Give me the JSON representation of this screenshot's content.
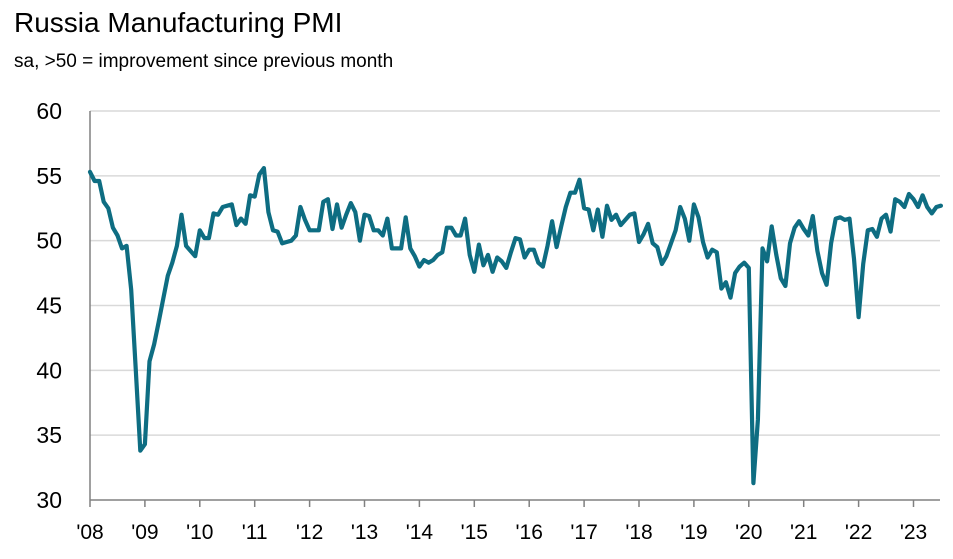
{
  "chart_data": {
    "type": "line",
    "title": "Russia Manufacturing PMI",
    "subtitle": "sa, >50 = improvement since previous month",
    "xlabel": "",
    "ylabel": "",
    "ylim": [
      30,
      60
    ],
    "yticks": [
      "60",
      "55",
      "50",
      "45",
      "40",
      "35",
      "30"
    ],
    "xticks": [
      "'08",
      "'09",
      "'10",
      "'11",
      "'12",
      "'13",
      "'14",
      "'15",
      "'16",
      "'17",
      "'18",
      "'19",
      "'20",
      "'21",
      "'22",
      "'23"
    ],
    "grid": "horizontal",
    "colors": {
      "line": "#0e6d82",
      "grid": "#d9d9d9",
      "axis": "#808080"
    },
    "series": [
      {
        "start": "2008-01",
        "frequency": "monthly",
        "values": [
          55.3,
          54.6,
          54.6,
          53.0,
          52.5,
          51.0,
          50.4,
          49.4,
          49.6,
          46.2,
          40.0,
          33.8,
          34.3,
          40.7,
          42.0,
          43.7,
          45.5,
          47.3,
          48.3,
          49.6,
          52.0,
          49.6,
          49.2,
          48.8,
          50.8,
          50.2,
          50.2,
          52.1,
          52.0,
          52.6,
          52.7,
          52.8,
          51.2,
          51.7,
          51.3,
          53.5,
          53.4,
          55.1,
          55.6,
          52.2,
          50.8,
          50.7,
          49.8,
          49.9,
          50.0,
          50.4,
          52.6,
          51.6,
          50.8,
          50.8,
          50.8,
          53.0,
          53.2,
          50.9,
          52.8,
          51.0,
          52.0,
          52.9,
          52.2,
          50.0,
          52.0,
          51.9,
          50.8,
          50.8,
          50.4,
          51.7,
          49.4,
          49.4,
          49.4,
          51.8,
          49.4,
          48.8,
          48.0,
          48.5,
          48.3,
          48.5,
          48.9,
          49.1,
          51.0,
          51.0,
          50.4,
          50.4,
          51.7,
          48.9,
          47.6,
          49.7,
          48.1,
          48.9,
          47.6,
          48.7,
          48.4,
          47.9,
          49.1,
          50.2,
          50.1,
          48.7,
          49.3,
          49.3,
          48.3,
          48.0,
          49.6,
          51.5,
          49.5,
          51.1,
          52.6,
          53.7,
          53.7,
          54.7,
          52.5,
          52.4,
          50.8,
          52.4,
          50.3,
          52.7,
          51.6,
          52.0,
          51.2,
          51.6,
          52.0,
          52.1,
          49.9,
          50.5,
          51.3,
          49.8,
          49.5,
          48.2,
          48.8,
          49.8,
          50.8,
          52.6,
          51.7,
          50.0,
          52.8,
          51.8,
          49.9,
          48.7,
          49.3,
          49.1,
          46.3,
          46.8,
          45.6,
          47.5,
          48.0,
          48.3,
          47.9,
          31.3,
          36.2,
          49.4,
          48.4,
          51.1,
          48.9,
          47.1,
          46.5,
          49.8,
          51.0,
          51.5,
          50.9,
          50.4,
          51.9,
          49.2,
          47.5,
          46.6,
          49.8,
          51.7,
          51.8,
          51.6,
          51.7,
          48.6,
          44.1,
          48.2,
          50.8,
          50.9,
          50.3,
          51.7,
          52.0,
          50.7,
          53.2,
          53.0,
          52.6,
          53.6,
          53.2,
          52.6,
          53.5,
          52.6,
          52.1,
          52.6,
          52.7
        ]
      }
    ]
  }
}
